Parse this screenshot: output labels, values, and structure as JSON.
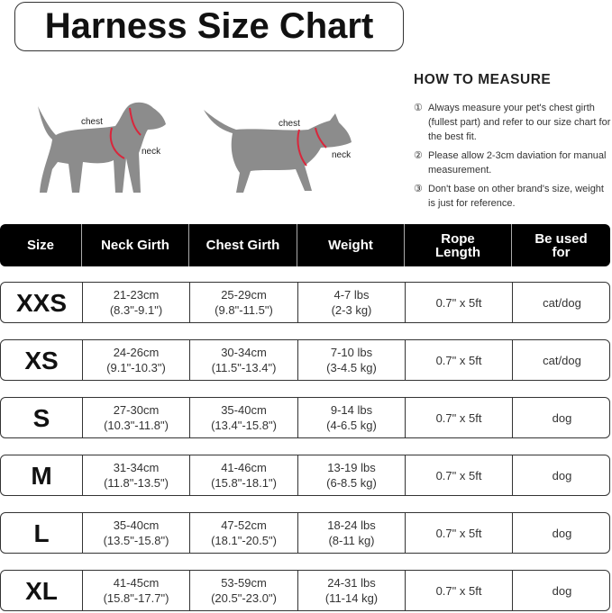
{
  "title": "Harness Size Chart",
  "labels": {
    "dog_chest": "chest",
    "dog_neck": "neck",
    "cat_chest": "chest",
    "cat_neck": "neck"
  },
  "how_to": {
    "heading": "HOW TO MEASURE",
    "steps": [
      {
        "num": "①",
        "text": "Always measure your pet's chest girth (fullest part) and refer to our size chart for the best fit."
      },
      {
        "num": "②",
        "text": "Please allow 2-3cm daviation for manual measurement."
      },
      {
        "num": "③",
        "text": "Don't base on other brand's size, weight is just for reference."
      }
    ]
  },
  "table": {
    "headers": [
      "Size",
      "Neck Girth",
      "Chest Girth",
      "Weight",
      "Rope Length",
      "Be used for"
    ],
    "rows": [
      [
        "XXS",
        "21-23cm\n(8.3\"-9.1\")",
        "25-29cm\n(9.8\"-11.5\")",
        "4-7 lbs\n(2-3 kg)",
        "0.7\" x 5ft",
        "cat/dog"
      ],
      [
        "XS",
        "24-26cm\n(9.1\"-10.3\")",
        "30-34cm\n(11.5\"-13.4\")",
        "7-10 lbs\n(3-4.5 kg)",
        "0.7\" x 5ft",
        "cat/dog"
      ],
      [
        "S",
        "27-30cm\n(10.3\"-11.8\")",
        "35-40cm\n(13.4\"-15.8\")",
        "9-14 lbs\n(4-6.5 kg)",
        "0.7\" x 5ft",
        "dog"
      ],
      [
        "M",
        "31-34cm\n(11.8\"-13.5\")",
        "41-46cm\n(15.8\"-18.1\")",
        "13-19 lbs\n(6-8.5 kg)",
        "0.7\" x 5ft",
        "dog"
      ],
      [
        "L",
        "35-40cm\n(13.5\"-15.8\")",
        "47-52cm\n(18.1\"-20.5\")",
        "18-24 lbs\n(8-11 kg)",
        "0.7\" x 5ft",
        "dog"
      ],
      [
        "XL",
        "41-45cm\n(15.8\"-17.7\")",
        "53-59cm\n(20.5\"-23.0\")",
        "24-31 lbs\n(11-14 kg)",
        "0.7\" x 5ft",
        "dog"
      ]
    ]
  },
  "colors": {
    "silhouette": "#8c8c8c",
    "harness": "#d9263b",
    "header_bg": "#000000"
  }
}
